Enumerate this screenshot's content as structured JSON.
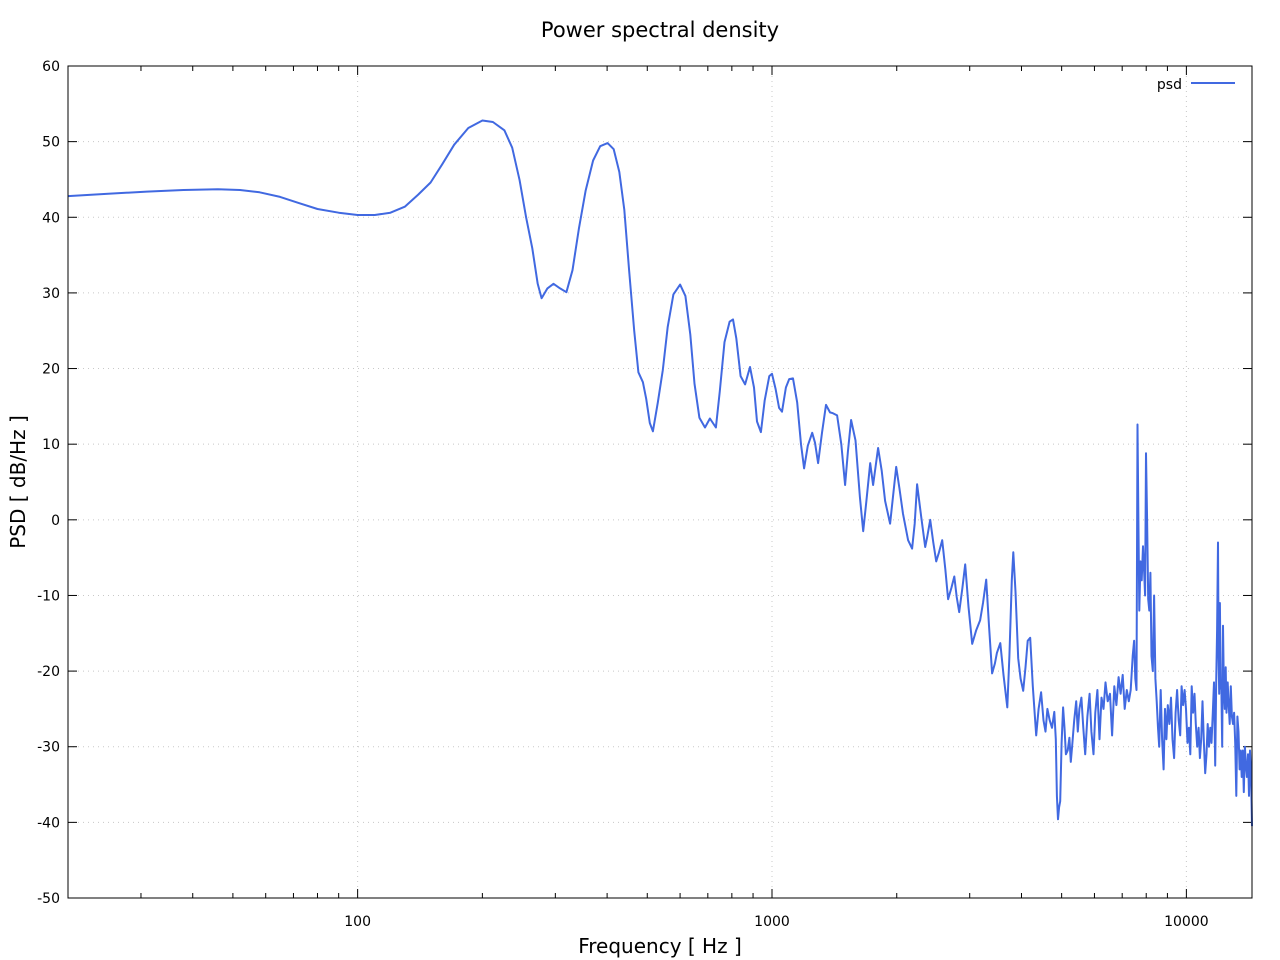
{
  "chart_data": {
    "type": "line",
    "title": "Power spectral density",
    "xlabel": "Frequency [ Hz ]",
    "ylabel": "PSD [ dB/Hz ]",
    "xscale": "log",
    "xlim": [
      20,
      14400
    ],
    "ylim": [
      -50,
      60
    ],
    "grid": true,
    "legend_position": "top-right",
    "x_ticks": [
      {
        "value": 100,
        "label": "100"
      },
      {
        "value": 1000,
        "label": "1000"
      },
      {
        "value": 10000,
        "label": "10000"
      }
    ],
    "y_ticks": [
      {
        "value": 60,
        "label": "60"
      },
      {
        "value": 50,
        "label": "50"
      },
      {
        "value": 40,
        "label": "40"
      },
      {
        "value": 30,
        "label": "30"
      },
      {
        "value": 20,
        "label": "20"
      },
      {
        "value": 10,
        "label": "10"
      },
      {
        "value": 0,
        "label": "0"
      },
      {
        "value": -10,
        "label": "-10"
      },
      {
        "value": -20,
        "label": "-20"
      },
      {
        "value": -30,
        "label": "-30"
      },
      {
        "value": -40,
        "label": "-40"
      },
      {
        "value": -50,
        "label": "-50"
      }
    ],
    "series": [
      {
        "name": "psd",
        "color": "#4169e1",
        "points": [
          [
            20,
            42.8
          ],
          [
            25,
            43.1
          ],
          [
            31,
            43.4
          ],
          [
            38,
            43.6
          ],
          [
            46,
            43.7
          ],
          [
            52,
            43.6
          ],
          [
            58,
            43.3
          ],
          [
            65,
            42.7
          ],
          [
            72,
            41.9
          ],
          [
            80,
            41.1
          ],
          [
            90,
            40.6
          ],
          [
            100,
            40.3
          ],
          [
            110,
            40.3
          ],
          [
            120,
            40.6
          ],
          [
            130,
            41.4
          ],
          [
            140,
            43.0
          ],
          [
            150,
            44.6
          ],
          [
            160,
            47.0
          ],
          [
            171,
            49.6
          ],
          [
            185,
            51.8
          ],
          [
            200,
            52.8
          ],
          [
            212,
            52.6
          ],
          [
            226,
            51.5
          ],
          [
            236,
            49.2
          ],
          [
            246,
            44.9
          ],
          [
            255,
            40.0
          ],
          [
            264,
            35.9
          ],
          [
            272,
            31.2
          ],
          [
            278,
            29.3
          ],
          [
            287,
            30.6
          ],
          [
            297,
            31.2
          ],
          [
            308,
            30.6
          ],
          [
            319,
            30.1
          ],
          [
            330,
            33.0
          ],
          [
            342,
            38.5
          ],
          [
            355,
            43.5
          ],
          [
            370,
            47.5
          ],
          [
            385,
            49.4
          ],
          [
            401,
            49.8
          ],
          [
            415,
            49.0
          ],
          [
            428,
            46.0
          ],
          [
            440,
            41.0
          ],
          [
            452,
            33.0
          ],
          [
            465,
            25.0
          ],
          [
            476,
            19.5
          ],
          [
            488,
            18.2
          ],
          [
            497,
            16.0
          ],
          [
            507,
            12.8
          ],
          [
            516,
            11.7
          ],
          [
            530,
            15.5
          ],
          [
            545,
            19.8
          ],
          [
            560,
            25.5
          ],
          [
            578,
            29.8
          ],
          [
            600,
            31.1
          ],
          [
            618,
            29.6
          ],
          [
            635,
            24.5
          ],
          [
            650,
            18.0
          ],
          [
            668,
            13.5
          ],
          [
            689,
            12.2
          ],
          [
            708,
            13.4
          ],
          [
            732,
            12.2
          ],
          [
            748,
            17.0
          ],
          [
            768,
            23.5
          ],
          [
            790,
            26.2
          ],
          [
            805,
            26.5
          ],
          [
            820,
            24.0
          ],
          [
            840,
            19.0
          ],
          [
            861,
            17.9
          ],
          [
            885,
            20.2
          ],
          [
            905,
            17.5
          ],
          [
            920,
            13.0
          ],
          [
            940,
            11.6
          ],
          [
            960,
            15.8
          ],
          [
            985,
            19.0
          ],
          [
            1000,
            19.3
          ],
          [
            1020,
            17.3
          ],
          [
            1040,
            14.8
          ],
          [
            1057,
            14.3
          ],
          [
            1080,
            17.5
          ],
          [
            1100,
            18.6
          ],
          [
            1124,
            18.7
          ],
          [
            1150,
            15.5
          ],
          [
            1175,
            10.0
          ],
          [
            1195,
            6.8
          ],
          [
            1220,
            9.8
          ],
          [
            1250,
            11.5
          ],
          [
            1270,
            10.2
          ],
          [
            1292,
            7.5
          ],
          [
            1320,
            11.5
          ],
          [
            1350,
            15.2
          ],
          [
            1380,
            14.2
          ],
          [
            1403,
            14.1
          ],
          [
            1436,
            13.8
          ],
          [
            1470,
            10.0
          ],
          [
            1501,
            4.6
          ],
          [
            1525,
            9.0
          ],
          [
            1552,
            13.2
          ],
          [
            1590,
            10.5
          ],
          [
            1630,
            3.0
          ],
          [
            1660,
            -1.5
          ],
          [
            1690,
            2.5
          ],
          [
            1726,
            7.5
          ],
          [
            1754,
            4.6
          ],
          [
            1803,
            9.5
          ],
          [
            1840,
            6.5
          ],
          [
            1875,
            2.5
          ],
          [
            1927,
            -0.5
          ],
          [
            1994,
            7.0
          ],
          [
            2030,
            4.2
          ],
          [
            2071,
            0.8
          ],
          [
            2130,
            -2.7
          ],
          [
            2178,
            -3.8
          ],
          [
            2210,
            -0.5
          ],
          [
            2240,
            4.7
          ],
          [
            2290,
            0.5
          ],
          [
            2343,
            -3.6
          ],
          [
            2370,
            -2.2
          ],
          [
            2408,
            0.0
          ],
          [
            2450,
            -3.0
          ],
          [
            2490,
            -5.5
          ],
          [
            2530,
            -4.3
          ],
          [
            2575,
            -2.7
          ],
          [
            2620,
            -6.5
          ],
          [
            2661,
            -10.5
          ],
          [
            2710,
            -9.0
          ],
          [
            2753,
            -7.5
          ],
          [
            2790,
            -10.2
          ],
          [
            2830,
            -12.2
          ],
          [
            2880,
            -9.0
          ],
          [
            2926,
            -5.9
          ],
          [
            2980,
            -11.5
          ],
          [
            3041,
            -16.4
          ],
          [
            3110,
            -14.6
          ],
          [
            3179,
            -13.3
          ],
          [
            3230,
            -11.0
          ],
          [
            3287,
            -7.9
          ],
          [
            3340,
            -14.0
          ],
          [
            3398,
            -20.3
          ],
          [
            3450,
            -19.0
          ],
          [
            3490,
            -17.6
          ],
          [
            3555,
            -16.3
          ],
          [
            3620,
            -20.5
          ],
          [
            3697,
            -24.8
          ],
          [
            3740,
            -18.0
          ],
          [
            3790,
            -8.0
          ],
          [
            3822,
            -4.3
          ],
          [
            3870,
            -9.5
          ],
          [
            3928,
            -18.3
          ],
          [
            3980,
            -21.0
          ],
          [
            4038,
            -22.6
          ],
          [
            4090,
            -19.5
          ],
          [
            4140,
            -16.0
          ],
          [
            4199,
            -15.6
          ],
          [
            4260,
            -22.0
          ],
          [
            4342,
            -28.5
          ],
          [
            4400,
            -25.0
          ],
          [
            4460,
            -22.8
          ],
          [
            4520,
            -26.5
          ],
          [
            4570,
            -28.0
          ],
          [
            4620,
            -25.0
          ],
          [
            4680,
            -26.5
          ],
          [
            4740,
            -27.5
          ],
          [
            4800,
            -25.4
          ],
          [
            4840,
            -29.0
          ],
          [
            4870,
            -36.5
          ],
          [
            4900,
            -39.6
          ],
          [
            4930,
            -38.0
          ],
          [
            4960,
            -37.2
          ],
          [
            5000,
            -29.5
          ],
          [
            5040,
            -24.8
          ],
          [
            5080,
            -27.5
          ],
          [
            5120,
            -31.0
          ],
          [
            5170,
            -30.5
          ],
          [
            5220,
            -28.8
          ],
          [
            5260,
            -32.0
          ],
          [
            5300,
            -30.0
          ],
          [
            5360,
            -26.5
          ],
          [
            5420,
            -24.0
          ],
          [
            5470,
            -28.0
          ],
          [
            5520,
            -25.0
          ],
          [
            5580,
            -23.5
          ],
          [
            5640,
            -27.5
          ],
          [
            5700,
            -31.0
          ],
          [
            5770,
            -26.0
          ],
          [
            5840,
            -23.0
          ],
          [
            5900,
            -28.0
          ],
          [
            5970,
            -31.0
          ],
          [
            6030,
            -25.5
          ],
          [
            6100,
            -22.5
          ],
          [
            6170,
            -29.0
          ],
          [
            6240,
            -23.5
          ],
          [
            6310,
            -25.0
          ],
          [
            6380,
            -21.5
          ],
          [
            6460,
            -24.0
          ],
          [
            6540,
            -23.0
          ],
          [
            6620,
            -28.5
          ],
          [
            6700,
            -22.0
          ],
          [
            6780,
            -24.5
          ],
          [
            6860,
            -20.8
          ],
          [
            6940,
            -23.0
          ],
          [
            7020,
            -20.5
          ],
          [
            7100,
            -25.0
          ],
          [
            7180,
            -22.5
          ],
          [
            7260,
            -24.0
          ],
          [
            7340,
            -22.5
          ],
          [
            7420,
            -18.0
          ],
          [
            7480,
            -16.0
          ],
          [
            7530,
            -21.0
          ],
          [
            7580,
            -22.5
          ],
          [
            7620,
            12.6
          ],
          [
            7660,
            0.0
          ],
          [
            7700,
            -12.0
          ],
          [
            7750,
            -5.5
          ],
          [
            7800,
            -8.0
          ],
          [
            7860,
            -3.5
          ],
          [
            7900,
            -6.5
          ],
          [
            7950,
            -10.0
          ],
          [
            7990,
            8.8
          ],
          [
            8040,
            0.0
          ],
          [
            8090,
            -10.5
          ],
          [
            8140,
            -12.0
          ],
          [
            8190,
            -7.0
          ],
          [
            8240,
            -18.0
          ],
          [
            8300,
            -20.0
          ],
          [
            8360,
            -10.0
          ],
          [
            8420,
            -21.0
          ],
          [
            8480,
            -24.0
          ],
          [
            8540,
            -27.5
          ],
          [
            8600,
            -30.0
          ],
          [
            8670,
            -22.5
          ],
          [
            8740,
            -29.0
          ],
          [
            8810,
            -33.0
          ],
          [
            8880,
            -25.0
          ],
          [
            8950,
            -29.0
          ],
          [
            9020,
            -24.5
          ],
          [
            9100,
            -27.0
          ],
          [
            9180,
            -23.5
          ],
          [
            9260,
            -29.0
          ],
          [
            9340,
            -31.5
          ],
          [
            9420,
            -25.5
          ],
          [
            9500,
            -22.5
          ],
          [
            9580,
            -26.5
          ],
          [
            9660,
            -28.5
          ],
          [
            9740,
            -22.0
          ],
          [
            9820,
            -24.5
          ],
          [
            9900,
            -22.5
          ],
          [
            9980,
            -25.0
          ],
          [
            10060,
            -29.5
          ],
          [
            10140,
            -27.5
          ],
          [
            10220,
            -31.0
          ],
          [
            10300,
            -22.0
          ],
          [
            10380,
            -25.5
          ],
          [
            10460,
            -23.0
          ],
          [
            10540,
            -27.0
          ],
          [
            10620,
            -30.0
          ],
          [
            10700,
            -27.5
          ],
          [
            10780,
            -31.5
          ],
          [
            10860,
            -29.0
          ],
          [
            10940,
            -24.0
          ],
          [
            11020,
            -29.5
          ],
          [
            11100,
            -33.5
          ],
          [
            11180,
            -31.0
          ],
          [
            11260,
            -27.0
          ],
          [
            11340,
            -30.0
          ],
          [
            11420,
            -27.5
          ],
          [
            11500,
            -29.5
          ],
          [
            11580,
            -25.5
          ],
          [
            11660,
            -21.5
          ],
          [
            11740,
            -32.5
          ],
          [
            11800,
            -21.5
          ],
          [
            11860,
            -14.5
          ],
          [
            11920,
            -3.0
          ],
          [
            11960,
            -18.0
          ],
          [
            12000,
            -23.0
          ],
          [
            12050,
            -11.0
          ],
          [
            12100,
            -22.0
          ],
          [
            12150,
            -22.5
          ],
          [
            12200,
            -30.0
          ],
          [
            12260,
            -14.0
          ],
          [
            12320,
            -22.5
          ],
          [
            12380,
            -25.0
          ],
          [
            12440,
            -19.5
          ],
          [
            12500,
            -25.5
          ],
          [
            12580,
            -21.5
          ],
          [
            12640,
            -24.0
          ],
          [
            12720,
            -27.0
          ],
          [
            12800,
            -22.0
          ],
          [
            12880,
            -26.0
          ],
          [
            12960,
            -27.0
          ],
          [
            13040,
            -25.5
          ],
          [
            13120,
            -29.5
          ],
          [
            13200,
            -36.5
          ],
          [
            13280,
            -26.0
          ],
          [
            13360,
            -28.0
          ],
          [
            13440,
            -33.0
          ],
          [
            13520,
            -30.5
          ],
          [
            13600,
            -34.0
          ],
          [
            13680,
            -30.5
          ],
          [
            13760,
            -36.0
          ],
          [
            13840,
            -30.0
          ],
          [
            13920,
            -32.5
          ],
          [
            14000,
            -34.0
          ],
          [
            14080,
            -31.0
          ],
          [
            14160,
            -36.5
          ],
          [
            14240,
            -30.5
          ],
          [
            14320,
            -33.5
          ],
          [
            14400,
            -40.5
          ]
        ]
      }
    ]
  }
}
